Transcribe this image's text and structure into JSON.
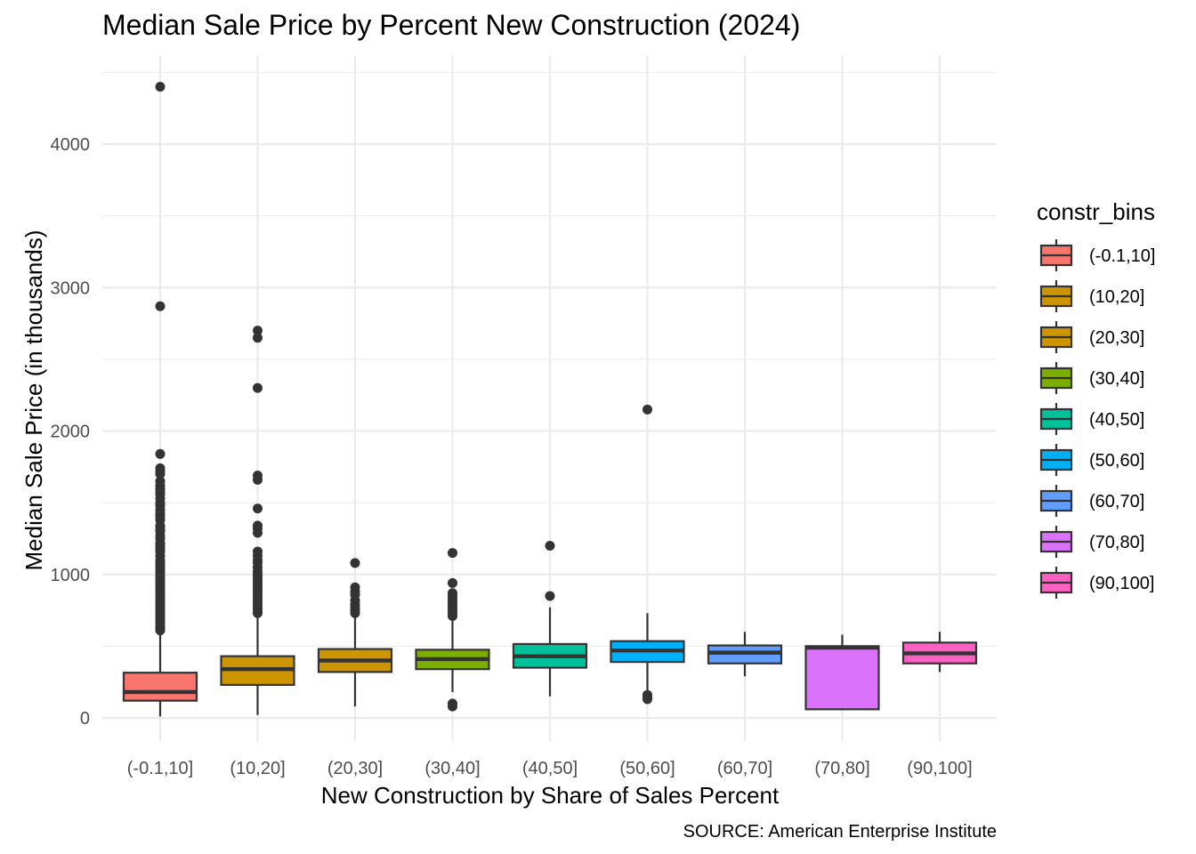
{
  "chart_data": {
    "type": "box",
    "title": "Median Sale Price by Percent New Construction (2024)",
    "xlabel": "New Construction by Share of Sales Percent",
    "ylabel": "Median Sale Price (in thousands)",
    "caption": "SOURCE: American Enterprise Institute",
    "ylim": [
      -130,
      4530
    ],
    "y_ticks": [
      0,
      1000,
      2000,
      3000,
      4000
    ],
    "grid": true,
    "legend": {
      "title": "constr_bins",
      "position": "right"
    },
    "categories": [
      "(-0.1,10]",
      "(10,20]",
      "(20,30]",
      "(30,40]",
      "(40,50]",
      "(50,60]",
      "(60,70]",
      "(70,80]",
      "(90,100]"
    ],
    "colors": [
      "#F8766D",
      "#CD9600",
      "#7CAE00",
      "#00BE67",
      "#00BFC4",
      "#00A9FF",
      "#C77CFF",
      "#FF61CC",
      "#FF61CC"
    ],
    "boxes": [
      {
        "category": "(-0.1,10]",
        "color": "#F8766D",
        "min": 10,
        "q1": 120,
        "median": 180,
        "q3": 315,
        "max": 600,
        "outliers": [
          4400,
          2870,
          1840,
          1740,
          1720,
          1700,
          1650,
          1620,
          1600,
          1580,
          1560,
          1530,
          1500,
          1480,
          1450,
          1420,
          1400,
          1380,
          1340,
          1320,
          1300,
          1270,
          1250,
          1220,
          1200,
          1180,
          1160,
          1130,
          1100,
          1080,
          1060,
          1040,
          1020,
          1000,
          980,
          960,
          940,
          920,
          900,
          880,
          860,
          840,
          820,
          800,
          780,
          760,
          740,
          720,
          700,
          680,
          660,
          640,
          620,
          610
        ]
      },
      {
        "category": "(10,20]",
        "color": "#CD9600",
        "min": 20,
        "q1": 230,
        "median": 340,
        "q3": 430,
        "max": 720,
        "outliers": [
          2700,
          2650,
          2300,
          1690,
          1660,
          1460,
          1340,
          1320,
          1290,
          1160,
          1130,
          1100,
          1080,
          1050,
          1020,
          1000,
          980,
          960,
          940,
          920,
          900,
          880,
          860,
          840,
          820,
          800,
          780,
          760,
          740,
          730
        ]
      },
      {
        "category": "(20,30]",
        "color": "#CD9600",
        "min": 80,
        "q1": 320,
        "median": 400,
        "q3": 480,
        "max": 700,
        "outliers": [
          1080,
          910,
          880,
          860,
          820,
          790,
          770,
          750,
          730
        ]
      },
      {
        "category": "(30,40]",
        "color": "#7CAE00",
        "min": 180,
        "q1": 340,
        "median": 410,
        "q3": 475,
        "max": 680,
        "outliers": [
          1150,
          940,
          870,
          850,
          830,
          810,
          790,
          770,
          750,
          730,
          710,
          100,
          80
        ]
      },
      {
        "category": "(40,50]",
        "color": "#00C19A",
        "min": 150,
        "q1": 350,
        "median": 430,
        "q3": 515,
        "max": 770,
        "outliers": [
          1200,
          850
        ]
      },
      {
        "category": "(50,60]",
        "color": "#00B0F6",
        "min": 190,
        "q1": 390,
        "median": 470,
        "q3": 535,
        "max": 730,
        "outliers": [
          2150,
          160,
          140,
          130
        ]
      },
      {
        "category": "(60,70]",
        "color": "#619CFF",
        "min": 290,
        "q1": 380,
        "median": 455,
        "q3": 505,
        "max": 600,
        "outliers": []
      },
      {
        "category": "(70,80]",
        "color": "#DB72FB",
        "min": 60,
        "q1": 60,
        "median": 490,
        "q3": 500,
        "max": 580,
        "outliers": []
      },
      {
        "category": "(90,100]",
        "color": "#FF61C3",
        "min": 320,
        "q1": 380,
        "median": 450,
        "q3": 525,
        "max": 600,
        "outliers": []
      }
    ]
  }
}
